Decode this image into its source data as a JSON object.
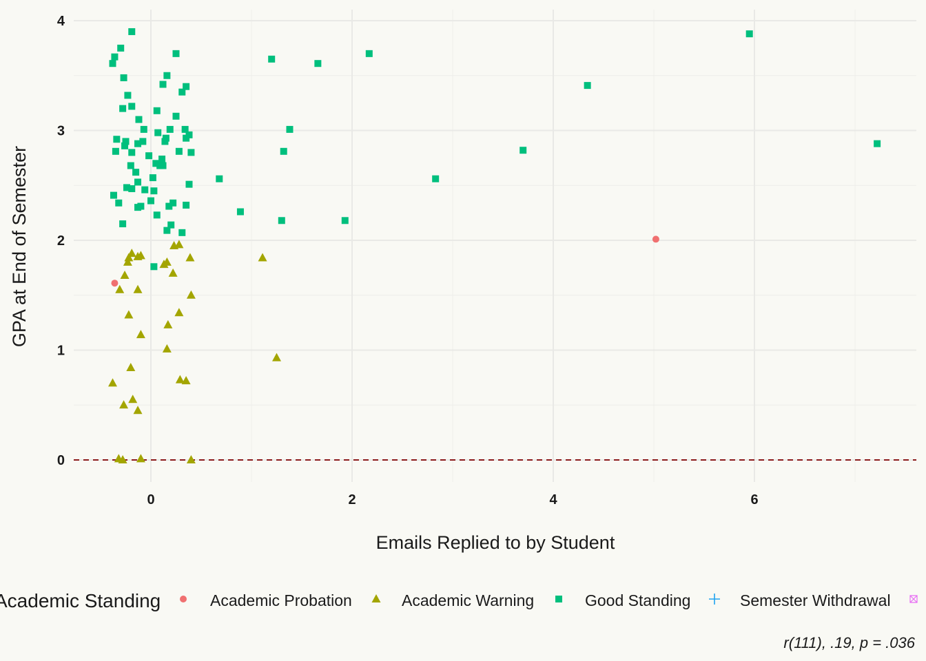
{
  "chart_data": {
    "type": "scatter",
    "xlabel": "Emails Replied to by Student",
    "ylabel": "GPA at End of Semester",
    "xlim": [
      -0.77,
      7.6
    ],
    "ylim": [
      -0.2,
      4.1
    ],
    "x_ticks": [
      0,
      2,
      4,
      6
    ],
    "y_ticks": [
      0,
      1,
      2,
      3,
      4
    ],
    "grid": true,
    "reference_line": {
      "y": 0,
      "style": "dashed",
      "color": "#8b1a1a"
    },
    "legend": {
      "title": "Academic Standing",
      "placement": "bottom",
      "entries": [
        {
          "label": "Academic Probation",
          "shape": "circle",
          "color": "#f07070"
        },
        {
          "label": "Academic Warning",
          "shape": "triangle",
          "color": "#a3a500"
        },
        {
          "label": "Good Standing",
          "shape": "square",
          "color": "#00bf7d"
        },
        {
          "label": "Semester Withdrawal",
          "shape": "plus",
          "color": "#1fa2f0"
        },
        {
          "label": "",
          "shape": "boxcross",
          "color": "#e76bf3"
        }
      ]
    },
    "caption": "r(111), .19, p = .036",
    "series": [
      {
        "name": "Academic Probation",
        "points": [
          [
            -0.36,
            1.61
          ],
          [
            5.02,
            2.01
          ]
        ]
      },
      {
        "name": "Academic Warning",
        "points": [
          [
            -0.19,
            1.88
          ],
          [
            -0.22,
            1.84
          ],
          [
            -0.23,
            1.8
          ],
          [
            -0.13,
            1.85
          ],
          [
            -0.1,
            1.86
          ],
          [
            0.23,
            1.95
          ],
          [
            0.28,
            1.96
          ],
          [
            0.39,
            1.84
          ],
          [
            0.13,
            1.78
          ],
          [
            0.16,
            1.8
          ],
          [
            1.11,
            1.84
          ],
          [
            -0.26,
            1.68
          ],
          [
            0.22,
            1.7
          ],
          [
            -0.31,
            1.55
          ],
          [
            -0.13,
            1.55
          ],
          [
            0.4,
            1.5
          ],
          [
            -0.22,
            1.32
          ],
          [
            0.28,
            1.34
          ],
          [
            0.17,
            1.23
          ],
          [
            -0.1,
            1.14
          ],
          [
            0.16,
            1.01
          ],
          [
            1.25,
            0.93
          ],
          [
            -0.2,
            0.84
          ],
          [
            0.29,
            0.73
          ],
          [
            0.35,
            0.72
          ],
          [
            -0.38,
            0.7
          ],
          [
            -0.18,
            0.55
          ],
          [
            -0.27,
            0.5
          ],
          [
            -0.13,
            0.45
          ],
          [
            -0.32,
            0.01
          ],
          [
            -0.28,
            0.0
          ],
          [
            -0.1,
            0.01
          ],
          [
            0.4,
            0.0
          ]
        ]
      },
      {
        "name": "Good Standing",
        "points": [
          [
            -0.19,
            3.9
          ],
          [
            -0.3,
            3.75
          ],
          [
            -0.36,
            3.67
          ],
          [
            -0.38,
            3.61
          ],
          [
            0.25,
            3.7
          ],
          [
            0.16,
            3.5
          ],
          [
            -0.27,
            3.48
          ],
          [
            0.12,
            3.42
          ],
          [
            0.35,
            3.4
          ],
          [
            0.31,
            3.35
          ],
          [
            -0.23,
            3.32
          ],
          [
            -0.19,
            3.22
          ],
          [
            -0.28,
            3.2
          ],
          [
            0.06,
            3.18
          ],
          [
            0.25,
            3.13
          ],
          [
            -0.12,
            3.1
          ],
          [
            -0.07,
            3.01
          ],
          [
            0.19,
            3.01
          ],
          [
            0.34,
            3.01
          ],
          [
            0.07,
            2.98
          ],
          [
            0.38,
            2.96
          ],
          [
            0.15,
            2.93
          ],
          [
            0.35,
            2.93
          ],
          [
            -0.34,
            2.92
          ],
          [
            -0.25,
            2.9
          ],
          [
            -0.08,
            2.9
          ],
          [
            0.14,
            2.9
          ],
          [
            -0.13,
            2.88
          ],
          [
            -0.26,
            2.86
          ],
          [
            -0.35,
            2.81
          ],
          [
            -0.19,
            2.8
          ],
          [
            0.28,
            2.81
          ],
          [
            0.4,
            2.8
          ],
          [
            -0.02,
            2.77
          ],
          [
            0.11,
            2.74
          ],
          [
            -0.2,
            2.68
          ],
          [
            0.05,
            2.7
          ],
          [
            0.09,
            2.68
          ],
          [
            0.12,
            2.68
          ],
          [
            -0.15,
            2.62
          ],
          [
            0.02,
            2.57
          ],
          [
            -0.13,
            2.53
          ],
          [
            0.38,
            2.51
          ],
          [
            -0.24,
            2.48
          ],
          [
            -0.19,
            2.47
          ],
          [
            -0.06,
            2.46
          ],
          [
            0.03,
            2.45
          ],
          [
            -0.37,
            2.41
          ],
          [
            0.0,
            2.36
          ],
          [
            -0.32,
            2.34
          ],
          [
            0.22,
            2.34
          ],
          [
            -0.13,
            2.3
          ],
          [
            -0.1,
            2.31
          ],
          [
            0.18,
            2.31
          ],
          [
            0.35,
            2.32
          ],
          [
            0.06,
            2.23
          ],
          [
            -0.28,
            2.15
          ],
          [
            0.2,
            2.14
          ],
          [
            0.16,
            2.09
          ],
          [
            0.31,
            2.07
          ],
          [
            0.03,
            1.76
          ],
          [
            0.68,
            2.56
          ],
          [
            0.89,
            2.26
          ],
          [
            1.3,
            2.18
          ],
          [
            1.93,
            2.18
          ],
          [
            1.32,
            2.81
          ],
          [
            1.38,
            3.01
          ],
          [
            1.2,
            3.65
          ],
          [
            1.66,
            3.61
          ],
          [
            2.17,
            3.7
          ],
          [
            2.83,
            2.56
          ],
          [
            3.7,
            2.82
          ],
          [
            4.34,
            3.41
          ],
          [
            5.95,
            3.88
          ],
          [
            7.22,
            2.88
          ]
        ]
      }
    ]
  }
}
